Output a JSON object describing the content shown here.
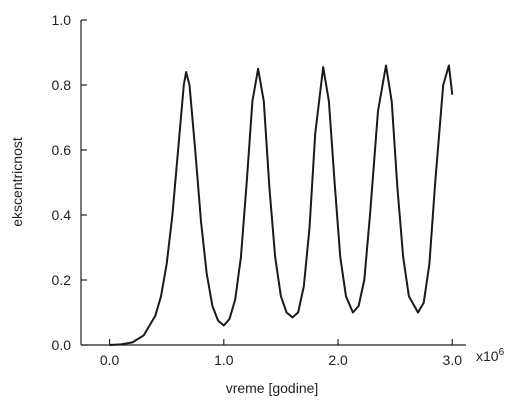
{
  "chart_data": {
    "type": "line",
    "xlabel": "vreme [godine]",
    "ylabel": "ekscentricnost",
    "x_multiplier": {
      "base": "x10",
      "exponent": "6"
    },
    "x": [
      0.0,
      0.1,
      0.2,
      0.3,
      0.4,
      0.45,
      0.5,
      0.55,
      0.6,
      0.65,
      0.67,
      0.7,
      0.75,
      0.8,
      0.85,
      0.9,
      0.95,
      1.0,
      1.05,
      1.1,
      1.15,
      1.2,
      1.25,
      1.3,
      1.35,
      1.4,
      1.45,
      1.5,
      1.55,
      1.6,
      1.65,
      1.7,
      1.75,
      1.8,
      1.87,
      1.92,
      1.97,
      2.02,
      2.07,
      2.13,
      2.18,
      2.23,
      2.28,
      2.35,
      2.42,
      2.47,
      2.52,
      2.57,
      2.62,
      2.7,
      2.75,
      2.8,
      2.85,
      2.92,
      2.97,
      3.0
    ],
    "values": [
      0.0,
      0.002,
      0.008,
      0.03,
      0.09,
      0.15,
      0.25,
      0.4,
      0.6,
      0.8,
      0.84,
      0.8,
      0.6,
      0.38,
      0.22,
      0.12,
      0.075,
      0.06,
      0.08,
      0.14,
      0.27,
      0.5,
      0.75,
      0.85,
      0.75,
      0.48,
      0.27,
      0.15,
      0.1,
      0.085,
      0.1,
      0.18,
      0.36,
      0.65,
      0.855,
      0.75,
      0.5,
      0.27,
      0.15,
      0.1,
      0.12,
      0.2,
      0.4,
      0.72,
      0.86,
      0.75,
      0.48,
      0.27,
      0.15,
      0.1,
      0.13,
      0.25,
      0.5,
      0.8,
      0.86,
      0.77
    ],
    "color": "#1a1a1a",
    "xlim": [
      -0.25,
      3.12
    ],
    "ylim": [
      0,
      1
    ],
    "xticks": [
      {
        "value": 0,
        "label": "0.0"
      },
      {
        "value": 1,
        "label": "1.0"
      },
      {
        "value": 2,
        "label": "2.0"
      },
      {
        "value": 3,
        "label": "3.0"
      }
    ],
    "yticks": [
      {
        "value": 0,
        "label": "0.0"
      },
      0.2,
      0.4,
      0.6,
      0.8,
      {
        "value": 1,
        "label": "1.0"
      }
    ],
    "grid": false
  }
}
